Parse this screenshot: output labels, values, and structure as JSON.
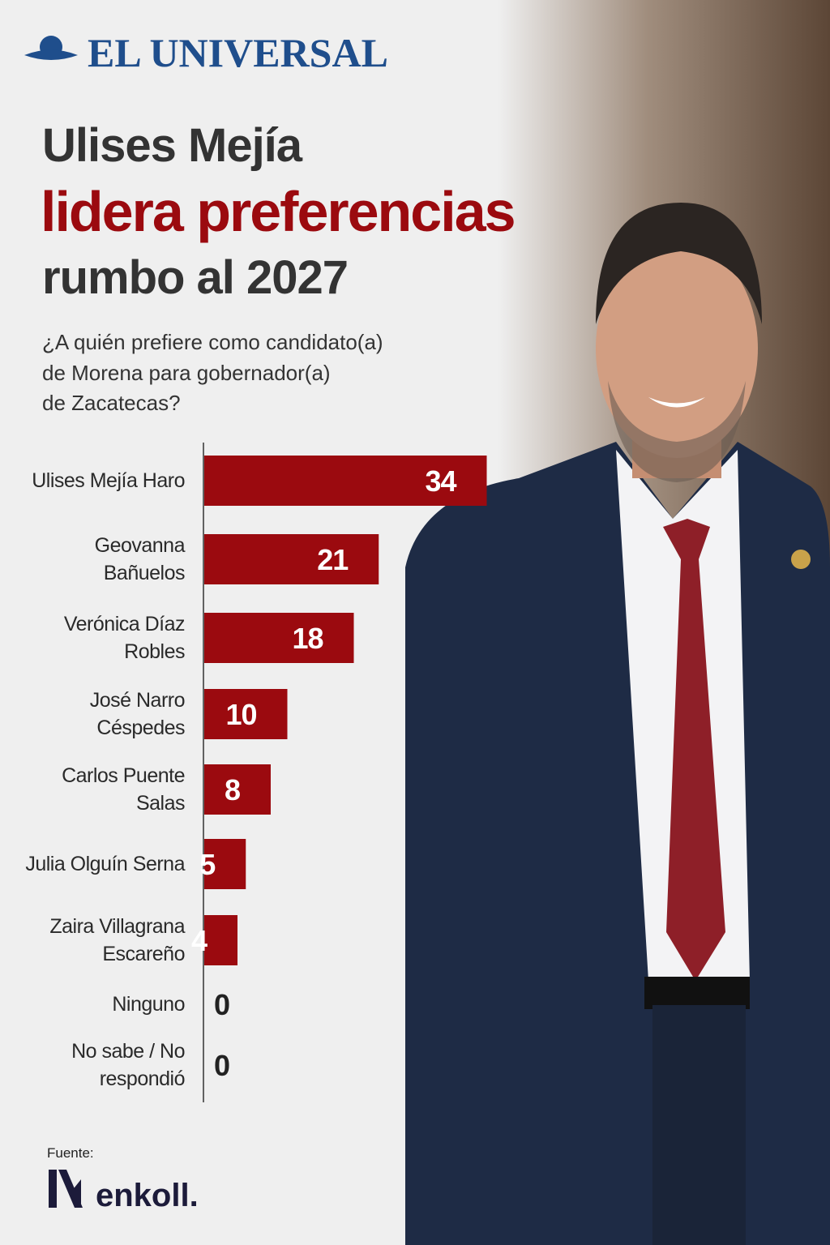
{
  "brand": "EL UNIVERSAL",
  "headline": [
    "Ulises Mejía",
    "lidera preferencias",
    "rumbo al 2027"
  ],
  "question": [
    "¿A quién prefiere como candidato(a)",
    "de Morena para gobernador(a)",
    "de Zacatecas?"
  ],
  "source": {
    "label": "Fuente:",
    "name": "enkoll."
  },
  "chart_data": {
    "type": "bar",
    "orientation": "horizontal",
    "color": "#9b0a0f",
    "categories": [
      "Ulises Mejía Haro",
      "Geovanna Bañuelos",
      "Verónica Díaz Robles",
      "José Narro Céspedes",
      "Carlos Puente Salas",
      "Julia Olguín Serna",
      "Zaira Villagrana Escareño",
      "Ninguno",
      "No sabe / No respondió"
    ],
    "values": [
      34,
      21,
      18,
      10,
      8,
      5,
      4,
      0,
      0
    ],
    "xlim": [
      0,
      40
    ]
  }
}
